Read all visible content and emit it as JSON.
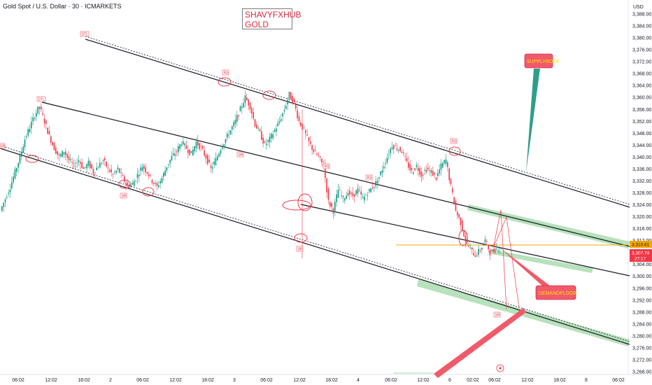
{
  "header": {
    "symbol_title": "Gold Spot / U.S. Dollar · 30 · ICMARKETS",
    "brand_line1": "SHAVYFXHUB",
    "brand_line2": "GOLD",
    "currency": "USD"
  },
  "chart_data": {
    "type": "candlestick",
    "title": "Gold Spot / U.S. Dollar · 30 · ICMARKETS",
    "ylim": [
      3268,
      3390
    ],
    "y_ticks": [
      "3,388.00",
      "3,384.00",
      "3,380.00",
      "3,376.00",
      "3,372.00",
      "3,368.00",
      "3,364.00",
      "3,360.00",
      "3,356.00",
      "3,352.00",
      "3,348.00",
      "3,344.00",
      "3,340.00",
      "3,336.00",
      "3,332.00",
      "3,328.00",
      "3,324.00",
      "3,320.00",
      "3,316.00",
      "3,312.00",
      "3,304.00",
      "3,300.00",
      "3,296.00",
      "3,292.00",
      "3,288.00",
      "3,284.00",
      "3,280.00",
      "3,276.00",
      "3,272.00",
      "3,268.00"
    ],
    "x_ticks": [
      "06:02",
      "12:02",
      "18:02",
      "2",
      "06:02",
      "12:02",
      "18:02",
      "3",
      "06:02",
      "12:02",
      "18:02",
      "4",
      "06:02",
      "12:02",
      "6",
      "02:02",
      "06:02",
      "12:02",
      "18:02",
      "8",
      "06:02"
    ],
    "current_price_labels": {
      "price_a": "3,310.61",
      "price_b": "3,307.74",
      "countdown": "27:17"
    },
    "colors": {
      "up": "#089981",
      "down": "#f23645",
      "current_line": "#f7a600",
      "zone": "#9fd8a5",
      "trendline": "#131722"
    },
    "annotations": {
      "supply": "SUPPLYROOF",
      "demand": "DEMANDFLOOR",
      "tags": [
        "DTL",
        "RS",
        "RS",
        "RS",
        "RS",
        "SR",
        "SR",
        "SR",
        "SR",
        "SR"
      ]
    },
    "timezone_icon": "lightning-icon",
    "candle_colors_note": "green up, red down",
    "price_path": [
      3322,
      3326,
      3330,
      3335,
      3340,
      3346,
      3350,
      3354,
      3357,
      3352,
      3347,
      3343,
      3340,
      3342,
      3339,
      3337,
      3339,
      3336,
      3338,
      3335,
      3337,
      3339,
      3336,
      3334,
      3336,
      3333,
      3330,
      3331,
      3334,
      3337,
      3335,
      3332,
      3330,
      3333,
      3337,
      3340,
      3342,
      3345,
      3343,
      3341,
      3345,
      3343,
      3340,
      3336,
      3339,
      3343,
      3346,
      3349,
      3352,
      3356,
      3360,
      3357,
      3351,
      3348,
      3344,
      3346,
      3349,
      3352,
      3356,
      3361,
      3358,
      3352,
      3349,
      3345,
      3342,
      3340,
      3337,
      3325,
      3322,
      3329,
      3326,
      3328,
      3327,
      3329,
      3326,
      3328,
      3330,
      3332,
      3336,
      3340,
      3344,
      3343,
      3342,
      3338,
      3335,
      3337,
      3334,
      3336,
      3335,
      3333,
      3337,
      3339,
      3330,
      3322,
      3318,
      3312,
      3309,
      3307,
      3309,
      3312,
      3308,
      3309,
      3310
    ]
  }
}
